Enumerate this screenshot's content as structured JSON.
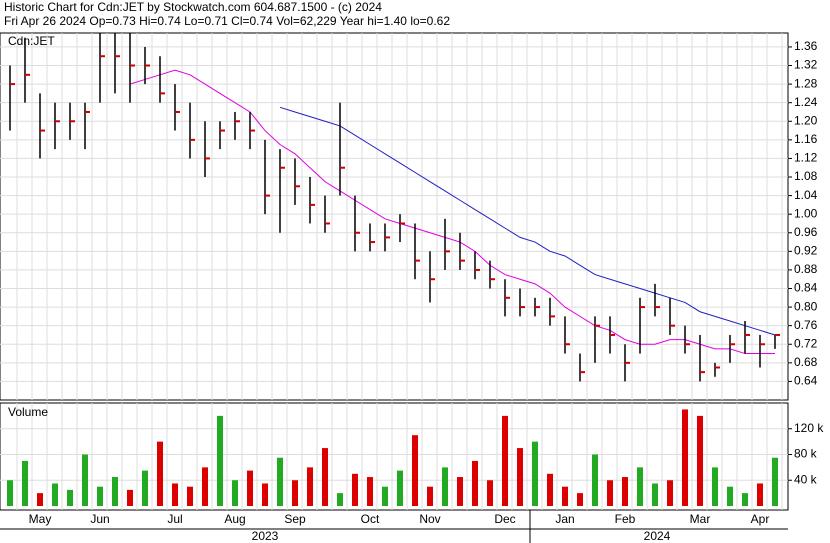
{
  "chart_data": [
    {
      "type": "ohlc",
      "title": "Historic Chart for Cdn:JET by Stockwatch.com 604.687.1500 - (c) 2024",
      "subtitle": "Fri Apr 26 2024  Op=0.73  Hi=0.74  Lo=0.71  Cl=0.74  Vol=62,229  Year hi=1.40  lo=0.62",
      "label": "Cdn:JET",
      "bar_color": "#000000",
      "close_color": "#cc0000",
      "high": [
        1.32,
        1.38,
        1.26,
        1.24,
        1.24,
        1.24,
        1.39,
        1.39,
        1.39,
        1.36,
        1.34,
        1.28,
        1.24,
        1.2,
        1.2,
        1.22,
        1.22,
        1.16,
        1.14,
        1.12,
        1.08,
        1.04,
        1.24,
        1.04,
        0.98,
        0.98,
        1.0,
        0.98,
        0.92,
        0.99,
        0.96,
        0.92,
        0.9,
        0.86,
        0.84,
        0.82,
        0.82,
        0.78,
        0.7,
        0.78,
        0.78,
        0.72,
        0.82,
        0.85,
        0.82,
        0.76,
        0.74,
        0.68,
        0.74,
        0.77,
        0.74,
        0.74
      ],
      "low": [
        1.18,
        1.24,
        1.12,
        1.14,
        1.16,
        1.14,
        1.24,
        1.26,
        1.24,
        1.28,
        1.24,
        1.18,
        1.12,
        1.08,
        1.14,
        1.16,
        1.14,
        1.0,
        0.96,
        1.02,
        0.98,
        0.96,
        1.04,
        0.92,
        0.92,
        0.92,
        0.94,
        0.86,
        0.81,
        0.88,
        0.88,
        0.86,
        0.84,
        0.78,
        0.78,
        0.78,
        0.76,
        0.7,
        0.64,
        0.68,
        0.7,
        0.64,
        0.7,
        0.78,
        0.74,
        0.7,
        0.64,
        0.65,
        0.68,
        0.7,
        0.67,
        0.71
      ],
      "close": [
        1.28,
        1.3,
        1.18,
        1.2,
        1.2,
        1.22,
        1.34,
        1.34,
        1.32,
        1.32,
        1.26,
        1.22,
        1.16,
        1.12,
        1.18,
        1.2,
        1.18,
        1.04,
        1.1,
        1.06,
        1.02,
        0.98,
        1.1,
        0.96,
        0.94,
        0.95,
        0.98,
        0.9,
        0.86,
        0.92,
        0.9,
        0.88,
        0.86,
        0.82,
        0.8,
        0.8,
        0.78,
        0.72,
        0.66,
        0.76,
        0.74,
        0.68,
        0.8,
        0.8,
        0.76,
        0.72,
        0.66,
        0.67,
        0.72,
        0.74,
        0.72,
        0.74
      ],
      "series": [
        {
          "color": "#e000e0",
          "values": [
            null,
            null,
            null,
            null,
            null,
            null,
            null,
            null,
            1.28,
            1.29,
            1.3,
            1.31,
            1.3,
            1.28,
            1.26,
            1.24,
            1.22,
            1.18,
            1.15,
            1.13,
            1.1,
            1.07,
            1.05,
            1.03,
            1.01,
            0.99,
            0.98,
            0.97,
            0.96,
            0.95,
            0.94,
            0.92,
            0.89,
            0.87,
            0.86,
            0.85,
            0.83,
            0.8,
            0.78,
            0.76,
            0.75,
            0.73,
            0.72,
            0.72,
            0.73,
            0.73,
            0.72,
            0.71,
            0.71,
            0.7,
            0.7,
            0.7
          ]
        },
        {
          "color": "#2020c0",
          "values": [
            null,
            null,
            null,
            null,
            null,
            null,
            null,
            null,
            null,
            null,
            null,
            null,
            null,
            null,
            null,
            null,
            null,
            null,
            1.23,
            1.22,
            1.21,
            1.2,
            1.19,
            1.17,
            1.15,
            1.13,
            1.11,
            1.09,
            1.07,
            1.05,
            1.03,
            1.01,
            0.99,
            0.97,
            0.95,
            0.94,
            0.92,
            0.91,
            0.89,
            0.87,
            0.86,
            0.85,
            0.84,
            0.83,
            0.82,
            0.81,
            0.79,
            0.78,
            0.77,
            0.76,
            0.75,
            0.74
          ]
        }
      ],
      "ylim": [
        0.6,
        1.39
      ],
      "yticks": [
        0.64,
        0.68,
        0.72,
        0.76,
        {
          "value": 0.8,
          "label": "0.80"
        },
        0.84,
        0.88,
        0.92,
        0.96,
        {
          "value": 1,
          "label": "1.00"
        },
        1.04,
        1.08,
        1.12,
        1.16,
        {
          "value": 1.2,
          "label": "1.20"
        },
        1.24,
        1.28,
        1.32,
        1.36
      ],
      "grid": true
    },
    {
      "type": "bar",
      "title": "Volume",
      "up_color": "#22aa22",
      "down_color": "#dd0000",
      "categories": [
        null,
        null,
        "May",
        null,
        null,
        null,
        "Jun",
        null,
        null,
        null,
        null,
        "Jul",
        null,
        null,
        null,
        "Aug",
        null,
        null,
        null,
        "Sep",
        null,
        null,
        null,
        null,
        "Oct",
        null,
        null,
        null,
        "Nov",
        null,
        null,
        null,
        null,
        "Dec",
        null,
        null,
        null,
        "Jan",
        null,
        null,
        null,
        "Feb",
        null,
        null,
        null,
        null,
        "Mar",
        null,
        null,
        null,
        "Apr",
        null
      ],
      "years": [
        "2023",
        "2024"
      ],
      "values": [
        40000,
        70000,
        20000,
        35000,
        25000,
        80000,
        30000,
        45000,
        25000,
        55000,
        100000,
        35000,
        30000,
        60000,
        140000,
        40000,
        55000,
        35000,
        75000,
        40000,
        60000,
        90000,
        20000,
        50000,
        45000,
        30000,
        55000,
        110000,
        30000,
        60000,
        45000,
        70000,
        40000,
        140000,
        90000,
        100000,
        50000,
        30000,
        20000,
        80000,
        40000,
        45000,
        60000,
        35000,
        40000,
        150000,
        140000,
        60000,
        30000,
        20000,
        35000,
        75000
      ],
      "ylim": [
        0,
        160000
      ],
      "yticks": [
        {
          "value": 40000,
          "label": "40 k"
        },
        {
          "value": 80000,
          "label": "80 k"
        },
        {
          "value": 120000,
          "label": "120 k"
        }
      ],
      "grid": true
    }
  ]
}
